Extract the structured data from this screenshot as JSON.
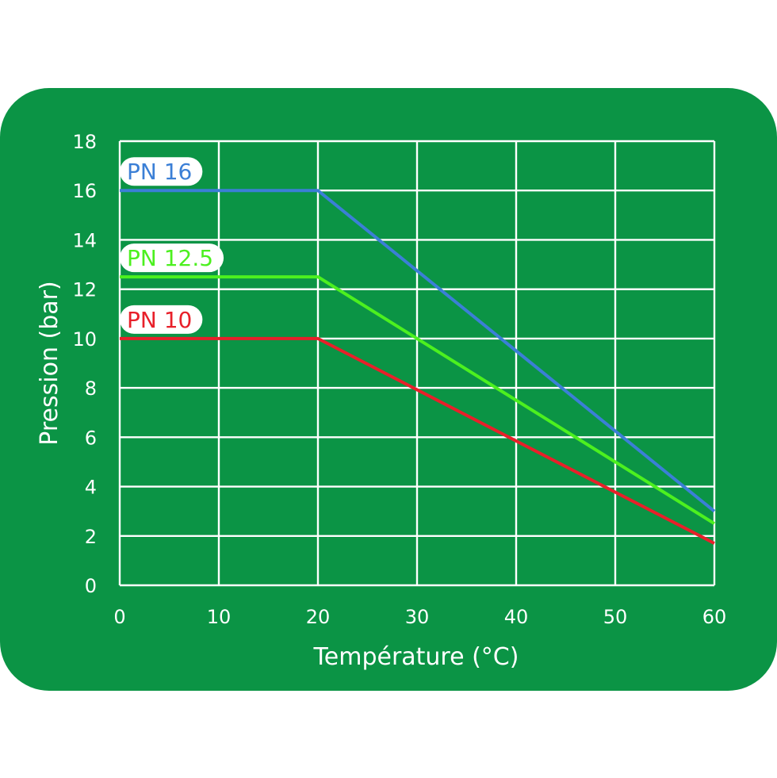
{
  "chart_data": {
    "type": "line",
    "xlabel": "Température (°C)",
    "ylabel": "Pression (bar)",
    "xlim": [
      0,
      60
    ],
    "ylim": [
      0,
      18
    ],
    "xticks": [
      "0",
      "10",
      "20",
      "30",
      "40",
      "50",
      "60"
    ],
    "yticks": [
      "0",
      "2",
      "4",
      "6",
      "8",
      "10",
      "12",
      "14",
      "16",
      "18"
    ],
    "grid": true,
    "background_color": "#0b9445",
    "grid_color": "#ffffff",
    "series": [
      {
        "name": "PN 16",
        "color": "#3b7fd6",
        "x": [
          0,
          20,
          60
        ],
        "y": [
          16,
          16,
          3.0
        ]
      },
      {
        "name": "PN 12.5",
        "color": "#4cf01f",
        "x": [
          0,
          20,
          60
        ],
        "y": [
          12.5,
          12.5,
          2.5
        ]
      },
      {
        "name": "PN 10",
        "color": "#e8202a",
        "x": [
          0,
          20,
          60
        ],
        "y": [
          10,
          10,
          1.7
        ]
      }
    ]
  }
}
